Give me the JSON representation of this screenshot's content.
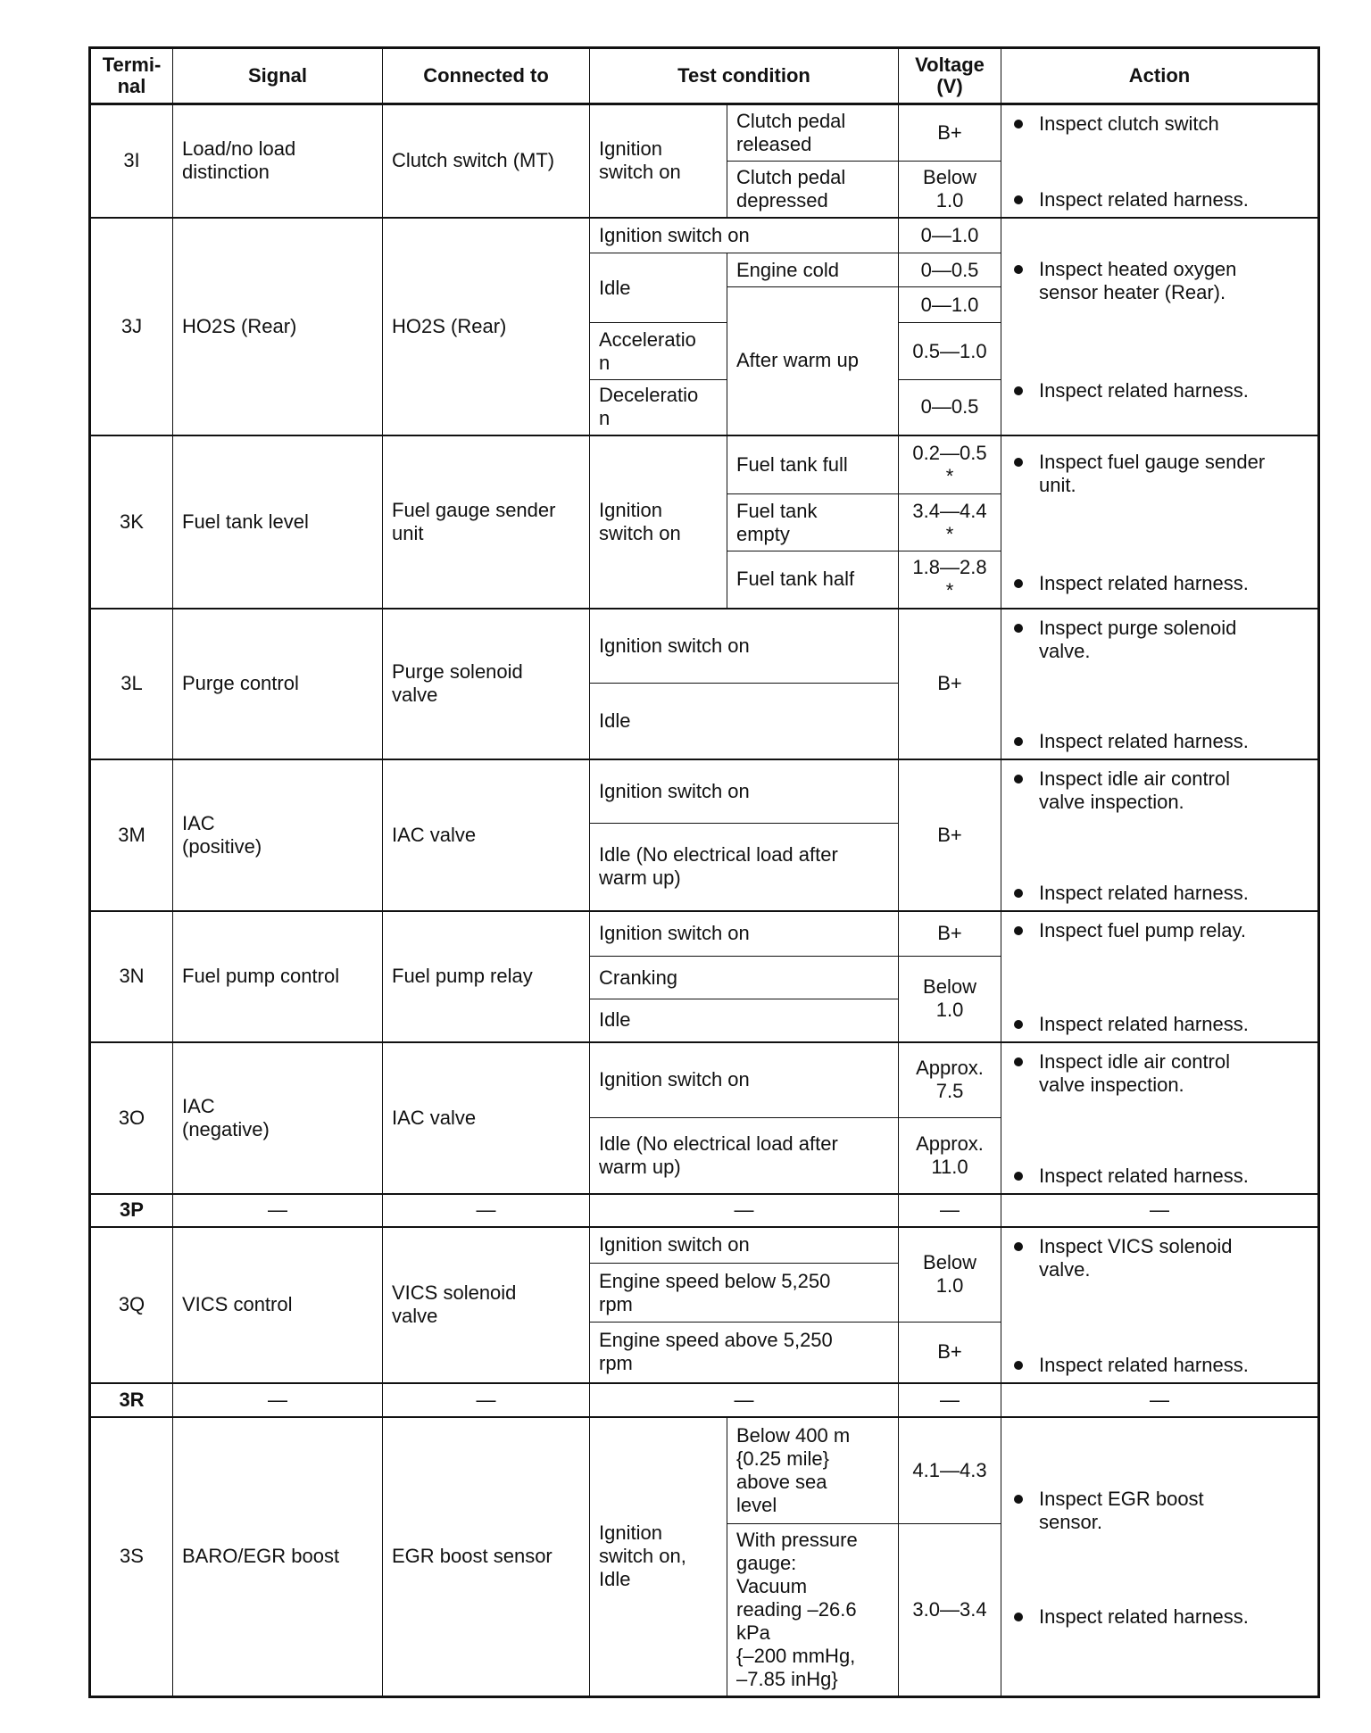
{
  "header": {
    "terminal": "Termi-\nnal",
    "signal": "Signal",
    "connected": "Connected to",
    "condition": "Test condition",
    "voltage": "Voltage\n(V)",
    "action": "Action"
  },
  "rows": {
    "r3I": {
      "terminal": "3I",
      "signal": "Load/no load\ndistinction",
      "connected": "Clutch switch (MT)",
      "cond": "Ignition\nswitch on",
      "sub": [
        "Clutch pedal\nreleased",
        "Clutch pedal\ndepressed"
      ],
      "volt": [
        "B+",
        "Below\n1.0"
      ],
      "action": [
        "Inspect clutch switch",
        "Inspect related harness."
      ]
    },
    "r3J": {
      "terminal": "3J",
      "signal": "HO2S (Rear)",
      "connected": "HO2S (Rear)",
      "cond": [
        "Ignition switch on",
        "Idle",
        "Acceleratio\nn",
        "Deceleratio\nn"
      ],
      "sub": [
        "Engine cold",
        "After warm up"
      ],
      "volt": [
        "0—1.0",
        "0—0.5",
        "0—1.0",
        "0.5—1.0",
        "0—0.5"
      ],
      "action": [
        "Inspect heated oxygen\nsensor heater (Rear).",
        "Inspect related harness."
      ]
    },
    "r3K": {
      "terminal": "3K",
      "signal": "Fuel tank level",
      "connected": "Fuel gauge sender\nunit",
      "cond": "Ignition\nswitch on",
      "sub": [
        "Fuel tank full",
        "Fuel tank\nempty",
        "Fuel tank half"
      ],
      "volt": [
        "0.2—0.5\n*",
        "3.4—4.4\n*",
        "1.8—2.8\n*"
      ],
      "action": [
        "Inspect fuel gauge sender\nunit.",
        "Inspect related harness."
      ]
    },
    "r3L": {
      "terminal": "3L",
      "signal": "Purge control",
      "connected": "Purge solenoid\nvalve",
      "cond": [
        "Ignition switch on",
        "Idle"
      ],
      "volt": "B+",
      "action": [
        "Inspect purge solenoid\nvalve.",
        "Inspect related harness."
      ]
    },
    "r3M": {
      "terminal": "3M",
      "signal": "IAC\n(positive)",
      "connected": "IAC valve",
      "cond": [
        "Ignition switch on",
        "Idle (No electrical load after\nwarm up)"
      ],
      "volt": "B+",
      "action": [
        "Inspect idle air control\nvalve inspection.",
        "Inspect related harness."
      ]
    },
    "r3N": {
      "terminal": "3N",
      "signal": "Fuel pump control",
      "connected": "Fuel pump relay",
      "cond": [
        "Ignition switch on",
        "Cranking",
        "Idle"
      ],
      "volt": [
        "B+",
        "Below\n1.0"
      ],
      "action": [
        "Inspect fuel pump relay.",
        "Inspect related harness."
      ]
    },
    "r3O": {
      "terminal": "3O",
      "signal": "IAC\n(negative)",
      "connected": "IAC valve",
      "cond": [
        "Ignition switch on",
        "Idle (No electrical load after\nwarm up)"
      ],
      "volt": [
        "Approx.\n7.5",
        "Approx.\n11.0"
      ],
      "action": [
        "Inspect idle air control\nvalve inspection.",
        "Inspect related harness."
      ]
    },
    "r3P": {
      "terminal": "3P",
      "signal": "—",
      "connected": "—",
      "cond": "—",
      "volt": "—",
      "action": "—"
    },
    "r3Q": {
      "terminal": "3Q",
      "signal": "VICS control",
      "connected": "VICS solenoid\nvalve",
      "cond": [
        "Ignition switch on",
        "Engine speed below 5,250\nrpm",
        "Engine speed above 5,250\nrpm"
      ],
      "volt": [
        "Below\n1.0",
        "B+"
      ],
      "action": [
        "Inspect VICS solenoid\nvalve.",
        "Inspect related harness."
      ]
    },
    "r3R": {
      "terminal": "3R",
      "signal": "—",
      "connected": "—",
      "cond": "—",
      "volt": "—",
      "action": "—"
    },
    "r3S": {
      "terminal": "3S",
      "signal": "BARO/EGR boost",
      "connected": "EGR boost sensor",
      "cond": "Ignition\nswitch on,\nIdle",
      "sub": [
        "Below 400 m\n{0.25 mile}\nabove sea\nlevel",
        "With pressure\ngauge:\nVacuum\nreading –26.6\nkPa\n{–200 mmHg,\n–7.85 inHg}"
      ],
      "volt": [
        "4.1—4.3",
        "3.0—3.4"
      ],
      "action": [
        "Inspect EGR boost\nsensor.",
        "Inspect related harness."
      ]
    }
  }
}
